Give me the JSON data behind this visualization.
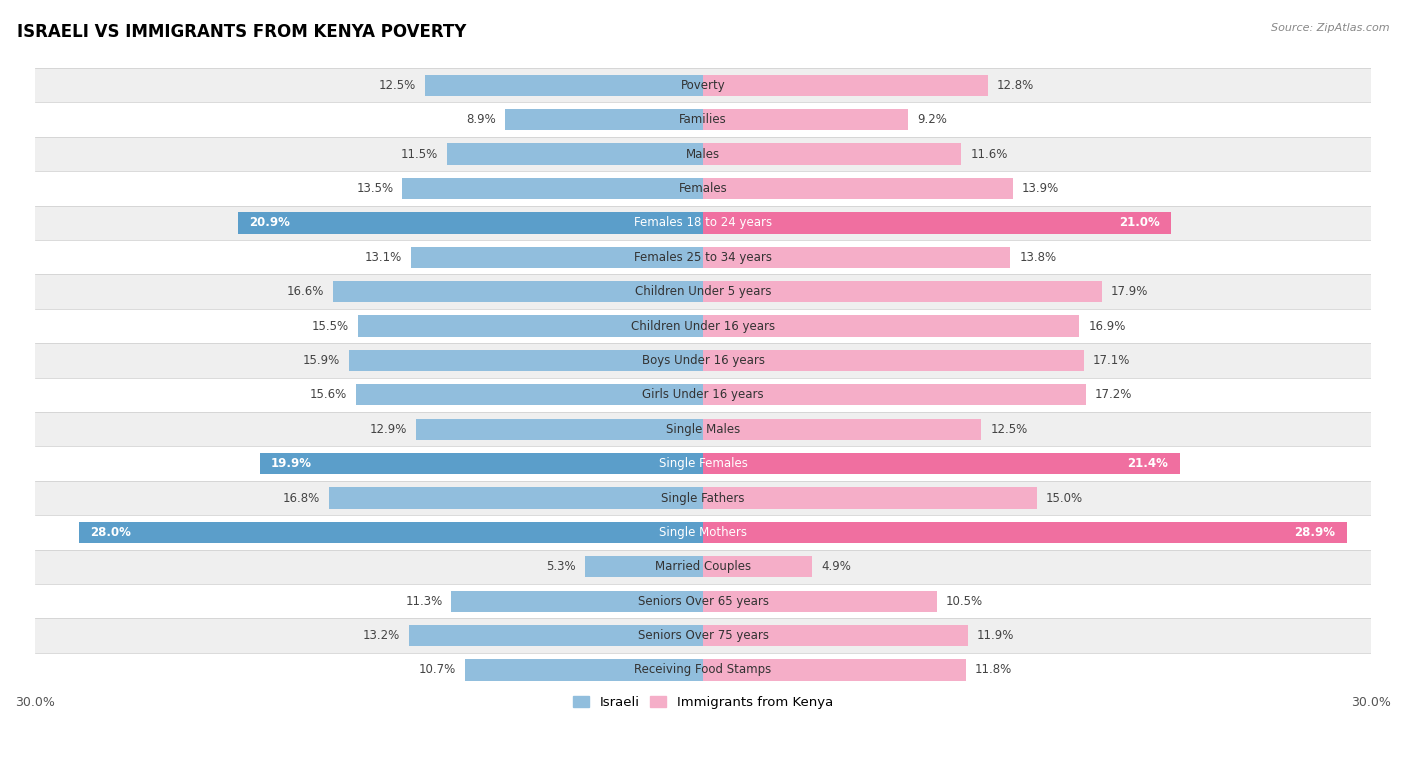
{
  "title": "ISRAELI VS IMMIGRANTS FROM KENYA POVERTY",
  "source": "Source: ZipAtlas.com",
  "categories": [
    "Poverty",
    "Families",
    "Males",
    "Females",
    "Females 18 to 24 years",
    "Females 25 to 34 years",
    "Children Under 5 years",
    "Children Under 16 years",
    "Boys Under 16 years",
    "Girls Under 16 years",
    "Single Males",
    "Single Females",
    "Single Fathers",
    "Single Mothers",
    "Married Couples",
    "Seniors Over 65 years",
    "Seniors Over 75 years",
    "Receiving Food Stamps"
  ],
  "israeli": [
    12.5,
    8.9,
    11.5,
    13.5,
    20.9,
    13.1,
    16.6,
    15.5,
    15.9,
    15.6,
    12.9,
    19.9,
    16.8,
    28.0,
    5.3,
    11.3,
    13.2,
    10.7
  ],
  "kenya": [
    12.8,
    9.2,
    11.6,
    13.9,
    21.0,
    13.8,
    17.9,
    16.9,
    17.1,
    17.2,
    12.5,
    21.4,
    15.0,
    28.9,
    4.9,
    10.5,
    11.9,
    11.8
  ],
  "israeli_color": "#91bedd",
  "kenya_color": "#f5aec8",
  "israeli_highlight_color": "#5b9eca",
  "kenya_highlight_color": "#f06fa0",
  "highlight_rows": [
    4,
    11,
    13
  ],
  "bar_height": 0.62,
  "max_val": 30.0,
  "bg_color": "#ffffff",
  "row_bg_light": "#efefef",
  "row_bg_white": "#ffffff",
  "label_fontsize": 8.5,
  "title_fontsize": 12,
  "axis_label_fontsize": 9,
  "legend_fontsize": 9.5
}
